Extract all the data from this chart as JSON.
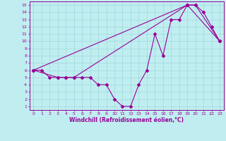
{
  "bg_color": "#c0eef0",
  "line_color": "#990099",
  "marker": "D",
  "markersize": 2,
  "linewidth": 0.8,
  "xlim": [
    -0.5,
    23.5
  ],
  "ylim": [
    0.5,
    15.5
  ],
  "xticks": [
    0,
    1,
    2,
    3,
    4,
    5,
    6,
    7,
    8,
    9,
    10,
    11,
    12,
    13,
    14,
    15,
    16,
    17,
    18,
    19,
    20,
    21,
    22,
    23
  ],
  "yticks": [
    1,
    2,
    3,
    4,
    5,
    6,
    7,
    8,
    9,
    10,
    11,
    12,
    13,
    14,
    15
  ],
  "xlabel": "Windchill (Refroidissement éolien,°C)",
  "series1_x": [
    0,
    1,
    2,
    3,
    4,
    5,
    6,
    7,
    8,
    9,
    10,
    11,
    12,
    13,
    14,
    15,
    16,
    17,
    18,
    19,
    20,
    21,
    22,
    23
  ],
  "series1_y": [
    6,
    6,
    5,
    5,
    5,
    5,
    5,
    5,
    4,
    4,
    2,
    1,
    1,
    4,
    6,
    11,
    8,
    13,
    13,
    15,
    15,
    14,
    12,
    10
  ],
  "series2_x": [
    0,
    3,
    4,
    5,
    19,
    20,
    23
  ],
  "series2_y": [
    6,
    5,
    5,
    5,
    15,
    15,
    10
  ],
  "series3_x": [
    0,
    19,
    23
  ],
  "series3_y": [
    6,
    15,
    10
  ],
  "tick_fontsize": 4.5,
  "xlabel_fontsize": 5.5
}
